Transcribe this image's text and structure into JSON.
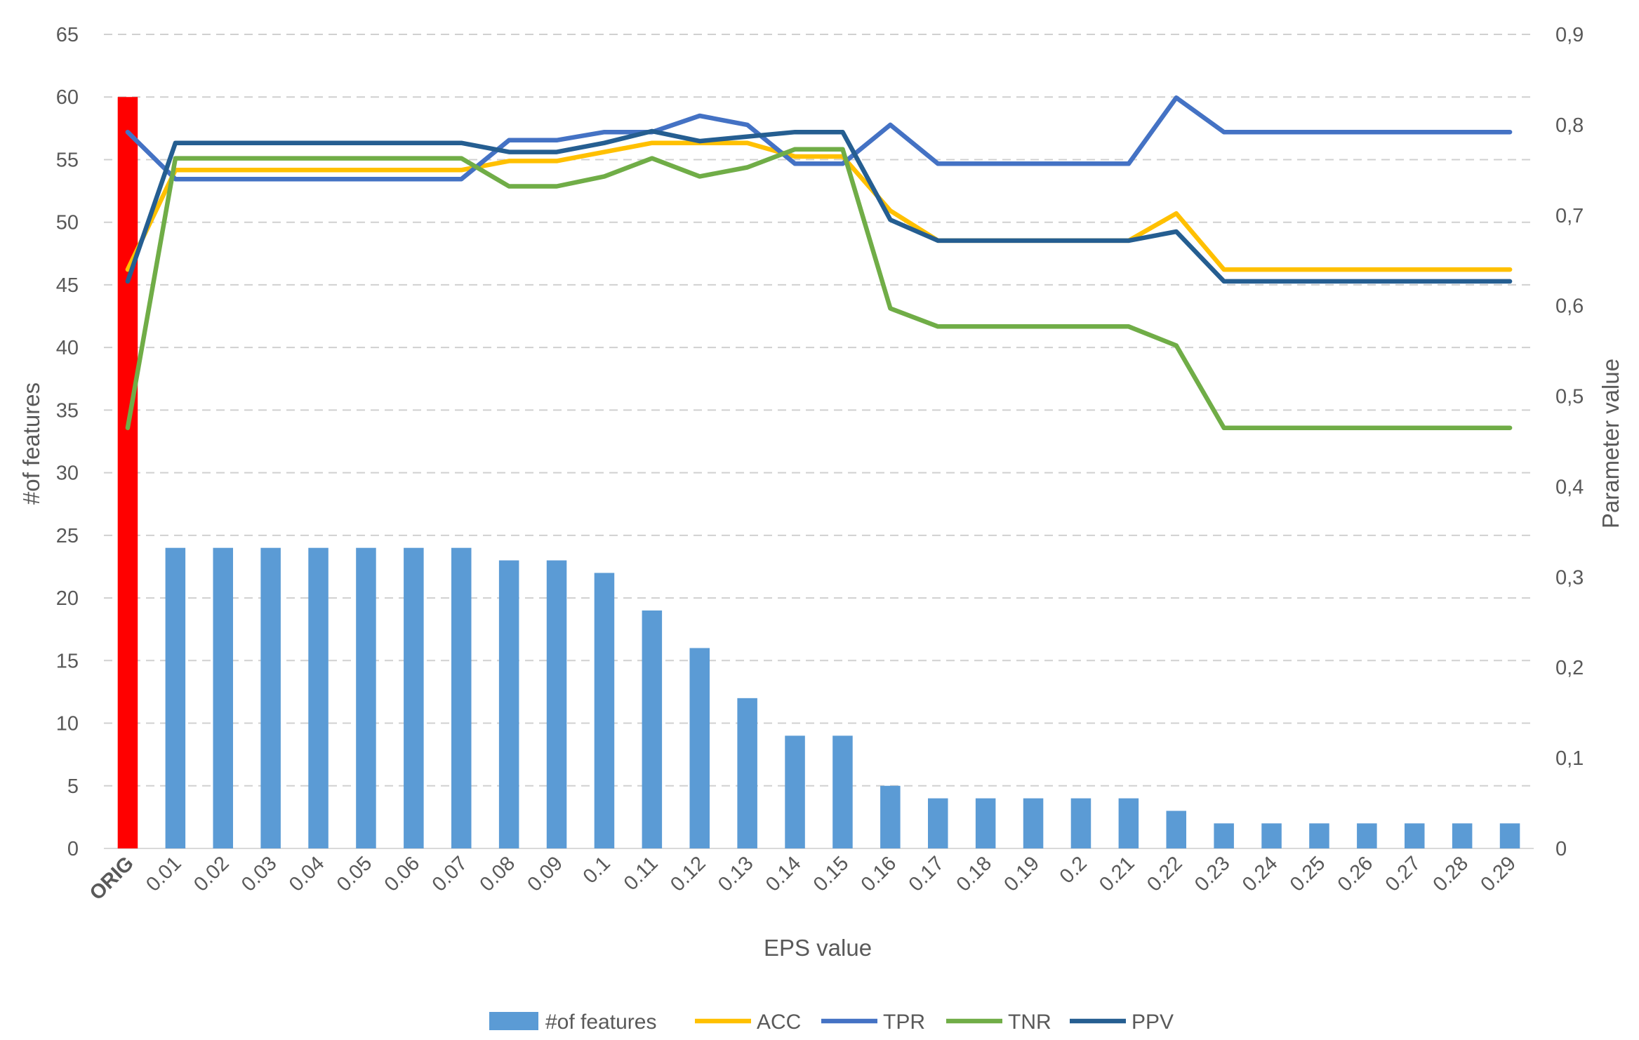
{
  "chart_data": {
    "type": "bar",
    "title": "",
    "xlabel": "EPS value",
    "ylabel_left": "#of features",
    "ylabel_right": "Parameter value",
    "ylim_left": [
      0,
      65
    ],
    "ylim_right": [
      0,
      0.9
    ],
    "yticks_left": [
      "0",
      "5",
      "10",
      "15",
      "20",
      "25",
      "30",
      "35",
      "40",
      "45",
      "50",
      "55",
      "60",
      "65"
    ],
    "yticks_right": [
      "0",
      "0,1",
      "0,2",
      "0,3",
      "0,4",
      "0,5",
      "0,6",
      "0,7",
      "0,8",
      "0,9"
    ],
    "grid": "horizontal dashed",
    "legend_position": "bottom",
    "categories": [
      "ORIG",
      "0.01",
      "0.02",
      "0.03",
      "0.04",
      "0.05",
      "0.06",
      "0.07",
      "0.08",
      "0.09",
      "0.1",
      "0.11",
      "0.12",
      "0.13",
      "0.14",
      "0.15",
      "0.16",
      "0.17",
      "0.18",
      "0.19",
      "0.2",
      "0.21",
      "0.22",
      "0.23",
      "0.24",
      "0.25",
      "0.26",
      "0.27",
      "0.28",
      "0.29"
    ],
    "bars": {
      "name": "#of features",
      "axis": "left",
      "color": "#5b9bd5",
      "highlight_color": "#ff0000",
      "highlight_index": 0,
      "values": [
        60,
        24,
        24,
        24,
        24,
        24,
        24,
        24,
        23,
        23,
        22,
        19,
        16,
        12,
        9,
        9,
        5,
        4,
        4,
        4,
        4,
        4,
        3,
        2,
        2,
        2,
        2,
        2,
        2,
        2
      ]
    },
    "series": [
      {
        "name": "ACC",
        "axis": "right",
        "color": "#ffc000",
        "values": [
          0.64,
          0.75,
          0.75,
          0.75,
          0.75,
          0.75,
          0.75,
          0.75,
          0.76,
          0.76,
          0.77,
          0.78,
          0.78,
          0.78,
          0.765,
          0.765,
          0.705,
          0.672,
          0.672,
          0.672,
          0.672,
          0.672,
          0.702,
          0.64,
          0.64,
          0.64,
          0.64,
          0.64,
          0.64,
          0.64
        ]
      },
      {
        "name": "TPR",
        "axis": "right",
        "color": "#4472c4",
        "values": [
          0.792,
          0.74,
          0.74,
          0.74,
          0.74,
          0.74,
          0.74,
          0.74,
          0.783,
          0.783,
          0.792,
          0.792,
          0.81,
          0.8,
          0.757,
          0.757,
          0.8,
          0.757,
          0.757,
          0.757,
          0.757,
          0.757,
          0.83,
          0.792,
          0.792,
          0.792,
          0.792,
          0.792,
          0.792,
          0.792
        ]
      },
      {
        "name": "TNR",
        "axis": "right",
        "color": "#70ad47",
        "values": [
          0.465,
          0.763,
          0.763,
          0.763,
          0.763,
          0.763,
          0.763,
          0.763,
          0.732,
          0.732,
          0.743,
          0.763,
          0.743,
          0.753,
          0.773,
          0.773,
          0.597,
          0.577,
          0.577,
          0.577,
          0.577,
          0.577,
          0.556,
          0.465,
          0.465,
          0.465,
          0.465,
          0.465,
          0.465,
          0.465
        ]
      },
      {
        "name": "PPV",
        "axis": "right",
        "color": "#255e91",
        "values": [
          0.627,
          0.78,
          0.78,
          0.78,
          0.78,
          0.78,
          0.78,
          0.78,
          0.77,
          0.77,
          0.78,
          0.793,
          0.782,
          0.787,
          0.792,
          0.792,
          0.695,
          0.672,
          0.672,
          0.672,
          0.672,
          0.672,
          0.682,
          0.627,
          0.627,
          0.627,
          0.627,
          0.627,
          0.627,
          0.627
        ]
      }
    ],
    "legend": [
      "#of features",
      "ACC",
      "TPR",
      "TNR",
      "PPV"
    ]
  }
}
